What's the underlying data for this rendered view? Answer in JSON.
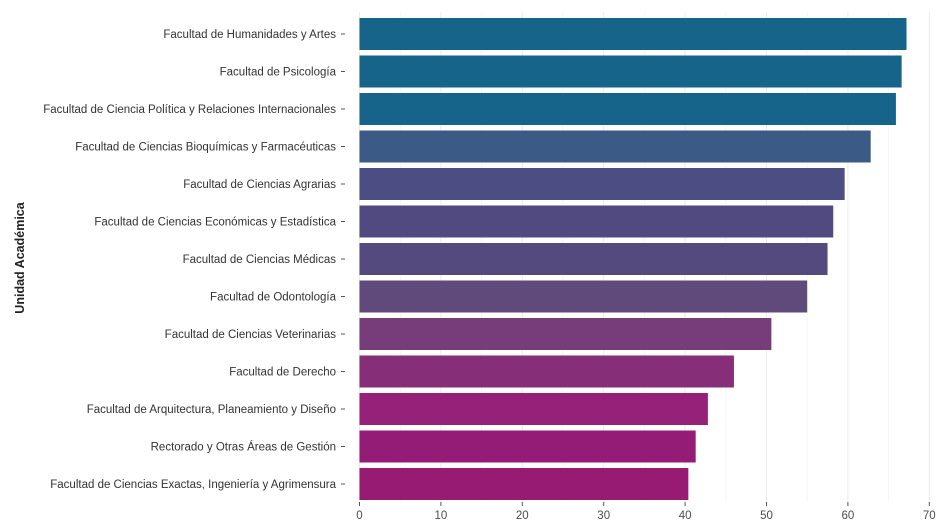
{
  "chart_data": {
    "type": "bar",
    "orientation": "horizontal",
    "ylabel": "Unidad Académica",
    "xlabel": "",
    "xlim": [
      0,
      70
    ],
    "xticks": [
      0,
      10,
      20,
      30,
      40,
      50,
      60,
      70
    ],
    "grid": true,
    "categories": [
      "Facultad de Humanidades y Artes",
      "Facultad de Psicología",
      "Facultad de Ciencia Política y Relaciones Internacionales",
      "Facultad de Ciencias Bioquímicas y Farmacéuticas",
      "Facultad de Ciencias Agrarias",
      "Facultad de Ciencias Económicas y Estadística",
      "Facultad de Ciencias Médicas",
      "Facultad de Odontología",
      "Facultad de Ciencias Veterinarias",
      "Facultad de Derecho",
      "Facultad de Arquitectura, Planeamiento y Diseño",
      "Rectorado y Otras Áreas de Gestión",
      "Facultad de Ciencias Exactas, Ingeniería y Agrimensura"
    ],
    "values": [
      67.2,
      66.6,
      65.9,
      62.8,
      59.6,
      58.2,
      57.5,
      55.0,
      50.6,
      46.0,
      42.8,
      41.3,
      40.4
    ],
    "colors": [
      "#17648a",
      "#17648a",
      "#17648a",
      "#3b5a86",
      "#4c4e83",
      "#514a80",
      "#554a7e",
      "#60497b",
      "#773d7a",
      "#872e78",
      "#952178",
      "#951c76",
      "#971a73"
    ]
  }
}
